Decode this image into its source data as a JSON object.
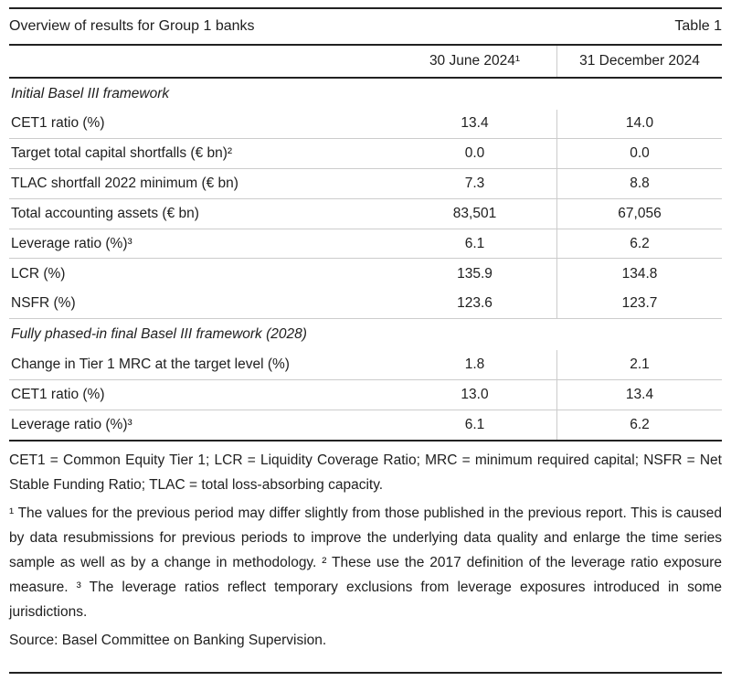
{
  "header": {
    "title": "Overview of results for Group 1 banks",
    "table_label": "Table 1"
  },
  "columns": {
    "jun": "30 June 2024¹",
    "dec": "31 December 2024"
  },
  "sections": [
    {
      "header": "Initial Basel III framework",
      "rows": [
        {
          "label": "CET1 ratio (%)",
          "jun": "13.4",
          "dec": "14.0"
        },
        {
          "label": "Target total capital shortfalls (€ bn)²",
          "jun": "0.0",
          "dec": "0.0"
        },
        {
          "label": "TLAC shortfall 2022 minimum (€ bn)",
          "jun": "7.3",
          "dec": "8.8"
        },
        {
          "label": "Total accounting assets (€ bn)",
          "jun": "83,501",
          "dec": "67,056"
        },
        {
          "label": "Leverage ratio (%)³",
          "jun": "6.1",
          "dec": "6.2"
        },
        {
          "label": "LCR (%)",
          "jun": "135.9",
          "dec": "134.8"
        },
        {
          "label": "NSFR (%)",
          "jun": "123.6",
          "dec": "123.7"
        }
      ]
    },
    {
      "header": "Fully phased-in final Basel III framework (2028)",
      "rows": [
        {
          "label": "Change in Tier 1 MRC at the target level (%)",
          "jun": "1.8",
          "dec": "2.1"
        },
        {
          "label": "CET1 ratio (%)",
          "jun": "13.0",
          "dec": "13.4"
        },
        {
          "label": "Leverage ratio (%)³",
          "jun": "6.1",
          "dec": "6.2"
        }
      ]
    }
  ],
  "footnotes": {
    "abbreviations": "CET1 = Common Equity Tier 1; LCR = Liquidity Coverage Ratio; MRC = minimum required capital; NSFR = Net Stable Funding Ratio; TLAC = total loss-absorbing capacity.",
    "notes": "¹ The values for the previous period may differ slightly from those published in the previous report. This is caused by data resubmissions for previous periods to improve the underlying data quality and enlarge the time series sample as well as by a change in methodology. ² These use the 2017 definition of the leverage ratio exposure measure. ³ The leverage ratios reflect temporary exclusions from leverage exposures introduced in some jurisdictions.",
    "source": "Source: Basel Committee on Banking Supervision."
  },
  "colors": {
    "text": "#202020",
    "rule_dark": "#222222",
    "rule_light": "#cccccc",
    "background": "#ffffff"
  }
}
